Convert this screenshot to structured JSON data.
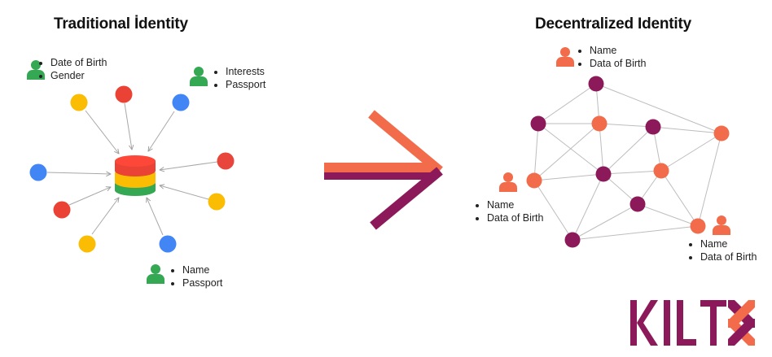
{
  "left_panel": {
    "title": "Traditional İdentity",
    "groups": [
      {
        "color": "#34a853",
        "items": [
          "Date of Birth",
          "Gender"
        ]
      },
      {
        "color": "#34a853",
        "items": [
          "Interests",
          "Passport"
        ]
      },
      {
        "color": "#34a853",
        "items": [
          "Name",
          "Passport"
        ]
      }
    ],
    "node_colors": [
      "#fbbc04",
      "#ea4335",
      "#4285f4",
      "#4285f4",
      "#e8453c",
      "#ea4335",
      "#fbbc04",
      "#fbbc04",
      "#4285f4"
    ],
    "database_colors": [
      "#ea4335",
      "#fbbc04",
      "#34a853"
    ]
  },
  "right_panel": {
    "title": "Decentralized Identity",
    "groups": [
      {
        "color": "#f26b4a",
        "items": [
          "Name",
          "Data of Birth"
        ]
      },
      {
        "color": "#f26b4a",
        "items": [
          "Name",
          "Data of Birth"
        ]
      },
      {
        "color": "#f26b4a",
        "items": [
          "Name",
          "Data of Birth"
        ]
      }
    ],
    "node_colors": {
      "purple": "#8c1a5a",
      "orange": "#f26b4a"
    }
  },
  "arrow": {
    "colors": [
      "#f26b4a",
      "#8c1a5a"
    ]
  },
  "logo": {
    "text": "KILT",
    "color": "#8c1a5a",
    "accent": "#f26b4a"
  }
}
